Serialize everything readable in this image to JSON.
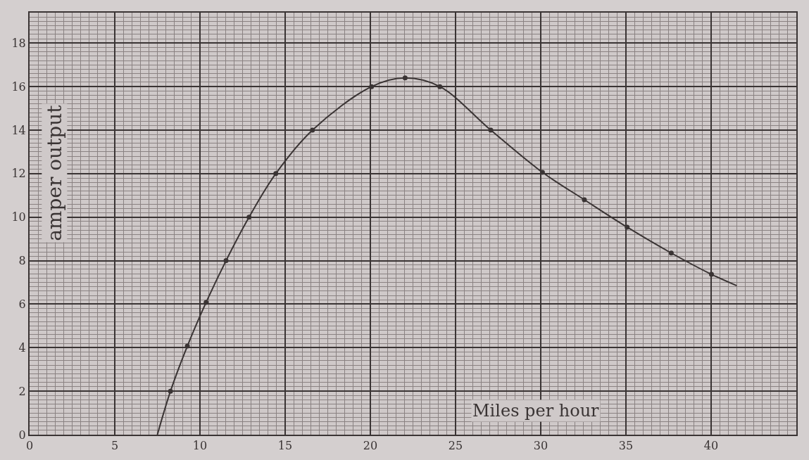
{
  "chart_data": {
    "type": "line",
    "xlabel": "Miles per hour",
    "ylabel": "amper output",
    "series": [
      {
        "color": "#3a3434",
        "marker": "none",
        "x": [
          7.5,
          8.27,
          9.26,
          10.36,
          11.53,
          12.88,
          14.45,
          16.6,
          20.07,
          22.04,
          24.08,
          27.07,
          30.1,
          32.56,
          35.07,
          37.66,
          40.02,
          41.5
        ],
        "values": [
          0,
          2.0,
          4.07,
          6.08,
          8.0,
          10.0,
          12.0,
          14.0,
          16.0,
          16.4,
          16.0,
          14.0,
          12.06,
          10.8,
          9.54,
          8.35,
          7.37,
          6.85
        ]
      },
      {
        "type": "scatter",
        "color": "#3a3434",
        "marker": "circle",
        "x": [
          8.27,
          9.26,
          10.36,
          11.53,
          12.88,
          14.45,
          16.6,
          20.07,
          22.04,
          24.08,
          27.07,
          30.1,
          32.56,
          35.07,
          37.66,
          40.02
        ],
        "values": [
          2.0,
          4.07,
          6.08,
          8.0,
          10.0,
          12.0,
          14.0,
          16.0,
          16.4,
          16.0,
          14.0,
          12.06,
          10.8,
          9.54,
          8.35,
          7.37
        ]
      }
    ],
    "xlim": [
      0,
      45
    ],
    "xticks": [
      0,
      5,
      10,
      15,
      20,
      25,
      30,
      35,
      40
    ],
    "ylim": [
      0,
      19.4
    ],
    "yticks": [
      0,
      2,
      4,
      6,
      8,
      10,
      12,
      14,
      16,
      18
    ],
    "grid": true,
    "line_style": "solid"
  }
}
